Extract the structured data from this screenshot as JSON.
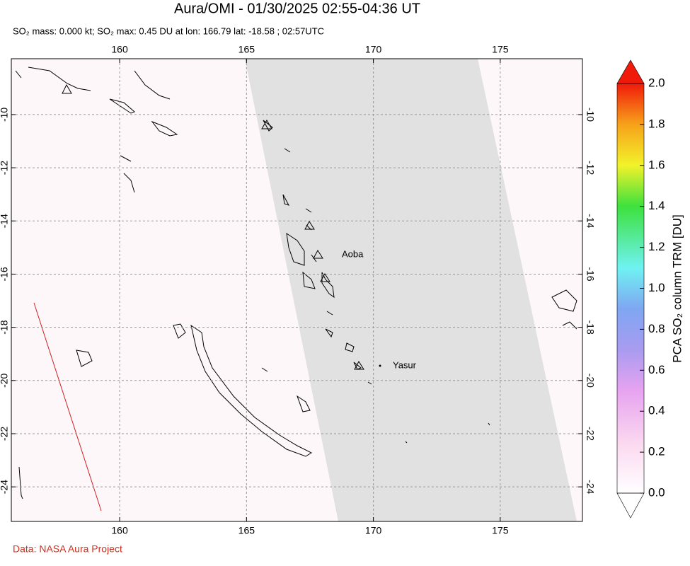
{
  "chart_data": {
    "type": "map",
    "title": "Aura/OMI - 01/30/2025 02:55-04:36 UT",
    "subtitle": "SO₂ mass: 0.000 kt; SO₂ max: 0.45 DU at lon: 166.79 lat: -18.58 ; 02:57UTC",
    "xlim": [
      155.73,
      178.24
    ],
    "ylim": [
      -25.3,
      -7.9
    ],
    "xticks": [
      160,
      165,
      170,
      175
    ],
    "yticks": [
      -10,
      -12,
      -14,
      -16,
      -18,
      -20,
      -22,
      -24
    ],
    "grid": true,
    "annotations": [
      "Aoba",
      "Yasur"
    ],
    "colorbar": {
      "label": "PCA SO₂ column TRM [DU]",
      "clim": [
        0,
        2
      ],
      "ticks": [
        {
          "value": 0,
          "label": "0.0"
        },
        {
          "value": 0.2,
          "label": "0.2"
        },
        {
          "value": 0.4,
          "label": "0.4"
        },
        {
          "value": 0.6,
          "label": "0.6"
        },
        {
          "value": 0.8,
          "label": "0.8"
        },
        {
          "value": 1,
          "label": "1.0"
        },
        {
          "value": 1.2,
          "label": "1.2"
        },
        {
          "value": 1.4,
          "label": "1.4"
        },
        {
          "value": 1.6,
          "label": "1.6"
        },
        {
          "value": 1.8,
          "label": "1.8"
        },
        {
          "value": 2,
          "label": "2.0"
        }
      ]
    },
    "source": "Data: NASA Aura Project"
  }
}
